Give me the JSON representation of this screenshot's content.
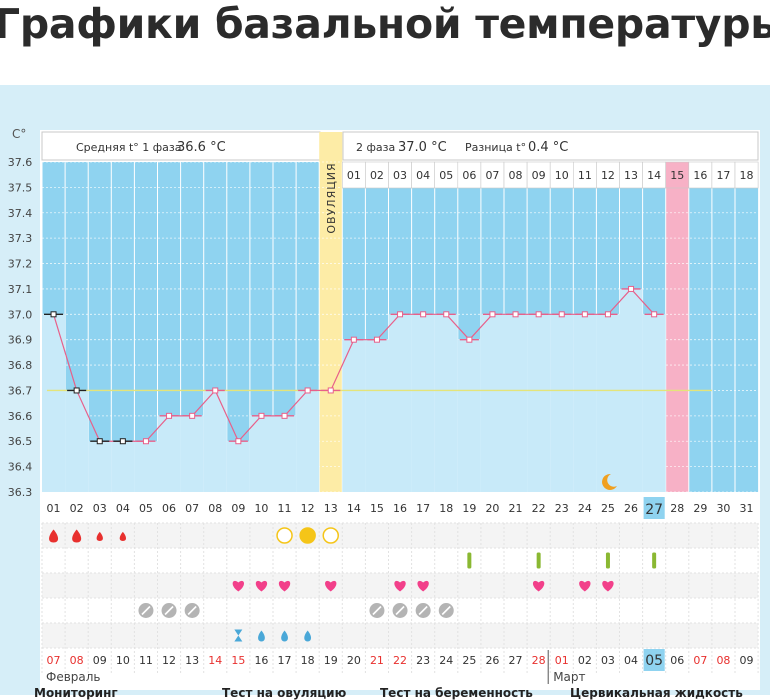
{
  "page": {
    "title": "Графики базальной температуры"
  },
  "header": {
    "phase1_label": "Средняя t° 1 фаза",
    "phase1_value": "36.6 °C",
    "phase2_label": "2 фаза",
    "phase2_value": "37.0 °C",
    "diff_label": "Разница t°",
    "diff_value": "0.4 °C"
  },
  "colors": {
    "phase_background": "#8fd3f0",
    "bar_fill": "#c8eaf9",
    "line": "#e8608a",
    "ovulation": "#fdeca6",
    "menstruation_highlight": "#f7b1c6",
    "today_highlight": "#8fd3f0",
    "cover_line": "#e4e47a"
  },
  "chart_data": {
    "type": "line",
    "title": "",
    "yunit_label": "C°",
    "ylim": [
      36.3,
      37.6
    ],
    "yticks": [
      "37.6",
      "37.5",
      "37.4",
      "37.3",
      "37.2",
      "37.1",
      "37.0",
      "36.9",
      "36.8",
      "36.7",
      "36.6",
      "36.5",
      "36.4",
      "36.3"
    ],
    "cycle_days": [
      "01",
      "02",
      "03",
      "04",
      "05",
      "06",
      "07",
      "08",
      "09",
      "10",
      "11",
      "12",
      "13",
      "14",
      "15",
      "16",
      "17",
      "18",
      "19",
      "20",
      "21",
      "22",
      "23",
      "24",
      "25",
      "26",
      "27",
      "28",
      "29",
      "30",
      "31"
    ],
    "temperatures": [
      37.0,
      36.7,
      36.5,
      36.5,
      36.5,
      36.6,
      36.6,
      36.7,
      36.5,
      36.6,
      36.6,
      36.7,
      36.7,
      36.9,
      36.9,
      37.0,
      37.0,
      37.0,
      36.9,
      37.0,
      37.0,
      37.0,
      37.0,
      37.0,
      37.0,
      37.1,
      37.0
    ],
    "cover_line": 36.7,
    "ovulation_day": 13,
    "ovulation_label": "ОВУЛЯЦИЯ",
    "luteal_day_labels": [
      "01",
      "02",
      "03",
      "04",
      "05",
      "06",
      "07",
      "08",
      "09",
      "10",
      "11",
      "12",
      "13",
      "14",
      "15",
      "16",
      "17",
      "18"
    ],
    "today_day": 27,
    "highlighted_luteal_day": 15,
    "moon_day": 25,
    "grid": true
  },
  "symptoms": {
    "bleeding_days": [
      1,
      2,
      3,
      4
    ],
    "bleeding_sizes": [
      "large",
      "large",
      "small",
      "small"
    ],
    "circle_days": [
      11,
      12,
      13
    ],
    "circle_filled": [
      false,
      true,
      false
    ],
    "test_days": [
      19,
      22,
      25,
      27
    ],
    "heart_days": [
      9,
      10,
      11,
      13,
      16,
      17,
      22,
      24,
      25
    ],
    "pill_days": [
      5,
      6,
      7,
      15,
      16,
      17,
      18
    ],
    "hourglass_day": 9,
    "drop_days": [
      10,
      11,
      12
    ]
  },
  "dates": {
    "labels": [
      "07",
      "08",
      "09",
      "10",
      "11",
      "12",
      "13",
      "14",
      "15",
      "16",
      "17",
      "18",
      "19",
      "20",
      "21",
      "22",
      "23",
      "24",
      "25",
      "26",
      "27",
      "28",
      "01",
      "02",
      "03",
      "04",
      "05",
      "06",
      "07",
      "08",
      "09"
    ],
    "red_indices": [
      0,
      1,
      7,
      8,
      14,
      15,
      21,
      22,
      28,
      29
    ],
    "highlighted_index": 26,
    "month1": "Февраль",
    "month2": "Март",
    "month_break_index": 22
  },
  "footer_legend": [
    "Мониторинг",
    "Тест на овуляцию",
    "Тест на беременность",
    "Цервикальная жидкость"
  ]
}
